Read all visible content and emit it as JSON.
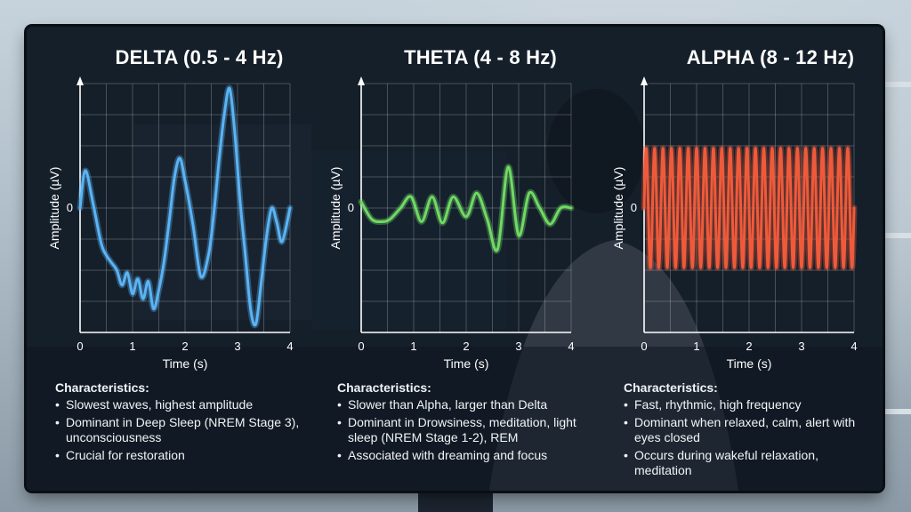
{
  "chart_data": [
    {
      "type": "line",
      "title": "DELTA (0.5 - 4 Hz)",
      "xlabel": "Time (s)",
      "ylabel": "Amplitude (µV)",
      "x_ticks": [
        "0",
        "1",
        "2",
        "3",
        "4"
      ],
      "y_ticks": [
        "0"
      ],
      "xlim": [
        0,
        4
      ],
      "ylim": [
        -1,
        1
      ],
      "grid": true,
      "color": "#5ab4f5",
      "series": [
        {
          "x": [
            0,
            0.1,
            0.25,
            0.4,
            0.5,
            0.6,
            0.7,
            0.8,
            0.9,
            1.0,
            1.1,
            1.2,
            1.3,
            1.4,
            1.5,
            1.6,
            1.7,
            1.8,
            1.9,
            2.0,
            2.15,
            2.3,
            2.45,
            2.55,
            2.65,
            2.75,
            2.85,
            2.95,
            3.05,
            3.15,
            3.25,
            3.35,
            3.45,
            3.55,
            3.65,
            3.75,
            3.85,
            4.0
          ],
          "y": [
            0.0,
            0.3,
            0.03,
            -0.28,
            -0.38,
            -0.44,
            -0.5,
            -0.62,
            -0.52,
            -0.69,
            -0.57,
            -0.73,
            -0.59,
            -0.81,
            -0.66,
            -0.43,
            -0.1,
            0.25,
            0.4,
            0.22,
            -0.13,
            -0.55,
            -0.37,
            -0.04,
            0.39,
            0.76,
            0.96,
            0.59,
            0.05,
            -0.38,
            -0.82,
            -0.93,
            -0.6,
            -0.24,
            0.0,
            -0.12,
            -0.27,
            0.0
          ]
        }
      ]
    },
    {
      "type": "line",
      "title": "THETA (4 - 8 Hz)",
      "xlabel": "Time (s)",
      "ylabel": "Amplitude (µV)",
      "x_ticks": [
        "0",
        "1",
        "2",
        "3",
        "4"
      ],
      "y_ticks": [
        "0"
      ],
      "xlim": [
        0,
        4
      ],
      "ylim": [
        -1,
        1
      ],
      "grid": true,
      "color": "#6fda63",
      "series": [
        {
          "x": [
            0,
            0.2,
            0.4,
            0.55,
            0.75,
            0.95,
            1.15,
            1.35,
            1.55,
            1.75,
            2.0,
            2.2,
            2.4,
            2.6,
            2.8,
            3.0,
            3.2,
            3.4,
            3.6,
            3.8,
            4.0
          ],
          "y": [
            0.05,
            -0.09,
            -0.11,
            -0.09,
            0.0,
            0.09,
            -0.11,
            0.09,
            -0.12,
            0.09,
            -0.07,
            0.12,
            -0.09,
            -0.33,
            0.33,
            -0.22,
            0.12,
            0.0,
            -0.13,
            0.0,
            0.0
          ]
        }
      ]
    },
    {
      "type": "line",
      "title": "ALPHA (8 - 12 Hz)",
      "xlabel": "Time (s)",
      "ylabel": "Amplitude (µV)",
      "x_ticks": [
        "0",
        "1",
        "2",
        "3",
        "4"
      ],
      "y_ticks": [
        "0"
      ],
      "xlim": [
        0,
        4
      ],
      "ylim": [
        -1,
        1
      ],
      "grid": true,
      "color": "#ef5a3a",
      "frequency_hz": 10,
      "amplitude": 0.48
    }
  ],
  "characteristics": [
    {
      "heading": "Characteristics:",
      "items": [
        "Slowest waves, highest amplitude",
        "Dominant in Deep Sleep (NREM Stage 3), unconsciousness",
        "Crucial for restoration"
      ]
    },
    {
      "heading": "Characteristics:",
      "items": [
        "Slower than Alpha, larger than Delta",
        "Dominant in Drowsiness, meditation, light sleep (NREM Stage 1-2), REM",
        "Associated with dreaming and focus"
      ]
    },
    {
      "heading": "Characteristics:",
      "items": [
        "Fast, rhythmic, high frequency",
        "Dominant when relaxed, calm, alert with eyes closed",
        "Occurs during wakeful relaxation, meditation"
      ]
    }
  ]
}
